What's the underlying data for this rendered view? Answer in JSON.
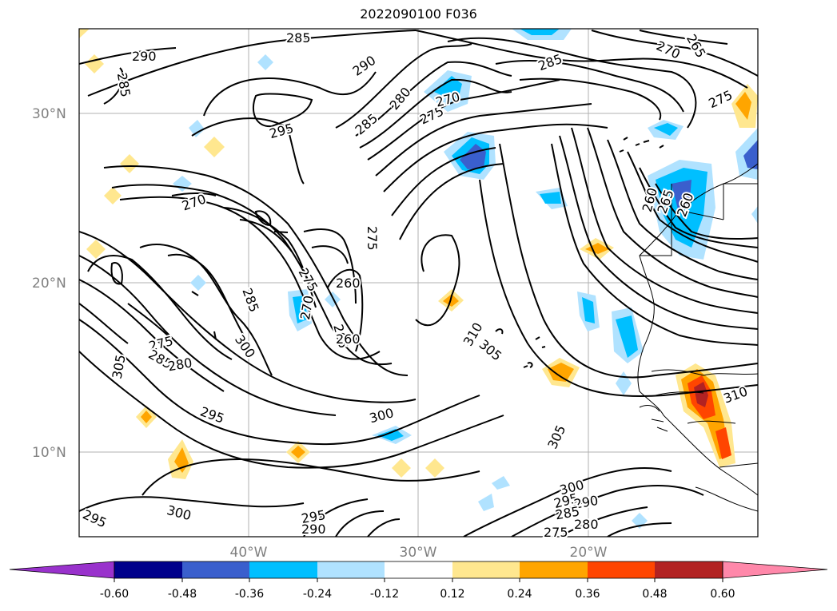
{
  "title": "2022090100 F036",
  "map": {
    "lat_labels": [
      "30°N",
      "20°N",
      "10°N"
    ],
    "lon_labels": [
      "40°W",
      "30°W",
      "20°W"
    ],
    "contour_labels": [
      "285",
      "290",
      "285",
      "290",
      "295",
      "285",
      "280",
      "275",
      "270",
      "285",
      "270",
      "265",
      "275",
      "270",
      "260",
      "265",
      "260",
      "275",
      "285",
      "300",
      "260",
      "275",
      "270",
      "265",
      "260",
      "310",
      "305",
      "275",
      "285",
      "280",
      "305",
      "295",
      "300",
      "305",
      "300",
      "295",
      "290",
      "285",
      "280",
      "275",
      "310",
      "295",
      "300",
      "295",
      "290"
    ]
  },
  "colorbar": {
    "ticks": [
      "-0.60",
      "-0.48",
      "-0.36",
      "-0.24",
      "-0.12",
      "0.12",
      "0.24",
      "0.36",
      "0.48",
      "0.60"
    ],
    "colors": [
      "#9932cc",
      "#00008b",
      "#3a5fcd",
      "#00bfff",
      "#b0e2ff",
      "#ffffff",
      "#ffe78f",
      "#ffa500",
      "#ff4500",
      "#b22222",
      "#ff88aa"
    ]
  }
}
